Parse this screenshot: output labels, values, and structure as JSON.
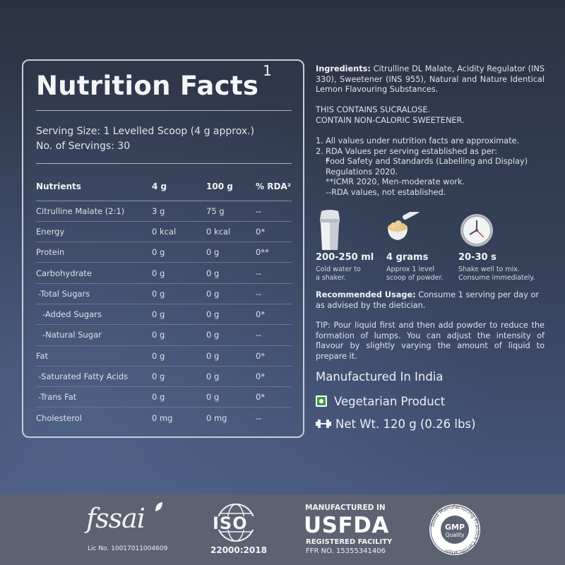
{
  "nutrition": {
    "title": "Nutrition Facts",
    "title_sup": "1",
    "serving_size": "Serving Size: 1 Levelled Scoop (4 g approx.)",
    "servings": "No. of Servings: 30",
    "headers": [
      "Nutrients",
      "4 g",
      "100 g",
      "% RDA²"
    ],
    "rows": [
      [
        "Citrulline Malate (2:1)",
        "3 g",
        "75 g",
        "--"
      ],
      [
        "Energy",
        "0 kcal",
        "0 kcal",
        "0*"
      ],
      [
        "Protein",
        "0 g",
        "0 g",
        "0**"
      ],
      [
        "Carbohydrate",
        "0 g",
        "0 g",
        "--"
      ],
      [
        "-Total Sugars",
        "0 g",
        "0 g",
        "--"
      ],
      [
        "-Added Sugars",
        "0 g",
        "0 g",
        "0*"
      ],
      [
        "-Natural Sugar",
        "0 g",
        "0 g",
        "--"
      ],
      [
        "Fat",
        "0 g",
        "0 g",
        "0*"
      ],
      [
        "-Saturated Fatty Acids",
        "0 g",
        "0 g",
        "0*"
      ],
      [
        "-Trans Fat",
        "0 g",
        "0 g",
        "0*"
      ],
      [
        "Cholesterol",
        "0 mg",
        "0 mg",
        "--"
      ]
    ]
  },
  "info": {
    "ingredients_label": "Ingredients:",
    "ingredients_text": "Citrulline DL Malate, Acidity Regulator (INS 330), Sweetener (INS 955), Natural and Nature Identical Lemon Flavouring Substances.",
    "sucralose_1": "THIS CONTAINS SUCRALOSE.",
    "sucralose_2": "CONTAIN NON-CALORIC SWEETENER.",
    "note_1_num": "1.",
    "note_1": "All values under nutrition facts  are approximate.",
    "note_2_num": "2.",
    "note_2": "RDA Values per serving established as per:",
    "note_2a_star": "*",
    "note_2a": "Food Safety and Standards (Labelling and Display) Regulations 2020.",
    "note_2b": "**ICMR 2020, Men-moderate work.",
    "note_2c": "--RDA values, not established.",
    "usage": [
      {
        "value": "200-250 ml",
        "desc1": "Cold water to",
        "desc2": "a shaker.",
        "icon": "shaker-icon"
      },
      {
        "value": "4 grams",
        "desc1": "Approx 1 level",
        "desc2": "scoop of powder.",
        "icon": "scoop-icon"
      },
      {
        "value": "20-30 s",
        "desc1": "Shake well to mix.",
        "desc2": "Consume immediately.",
        "icon": "clock-icon"
      }
    ],
    "recommended_label": "Recommended Usage:",
    "recommended_text": "Consume 1 serving per day or as advised by the dietician.",
    "tip": "TIP: Pour liquid first and then add powder to reduce the formation of lumps. You can adjust the intensity of flavour by slightly varying the amount of liquid to prepare it.",
    "manufactured": "Manufactured In India",
    "vegetarian": "Vegetarian Product",
    "net_wt": "Net Wt. 120 g (0.26 lbs)"
  },
  "footer": {
    "fssai_word": "fssai",
    "fssai_lic": "Lic No. 10017011004609",
    "iso_word": "ISO",
    "iso_num": "22000:2018",
    "usfda_top": "MANUFACTURED IN",
    "usfda_word": "USFDA",
    "usfda_reg": "REGISTERED FACILITY",
    "usfda_ffr": "FFR NO. 15355341406",
    "gmp_word": "GMP",
    "gmp_quality": "Quality",
    "gmp_ring": "Good Manufacturing Practice Certification"
  },
  "colors": {
    "background_top": "#2b3243",
    "background_bottom": "#45567a",
    "footer_band": "#5c6272",
    "veg_green": "#3c9a3a"
  }
}
